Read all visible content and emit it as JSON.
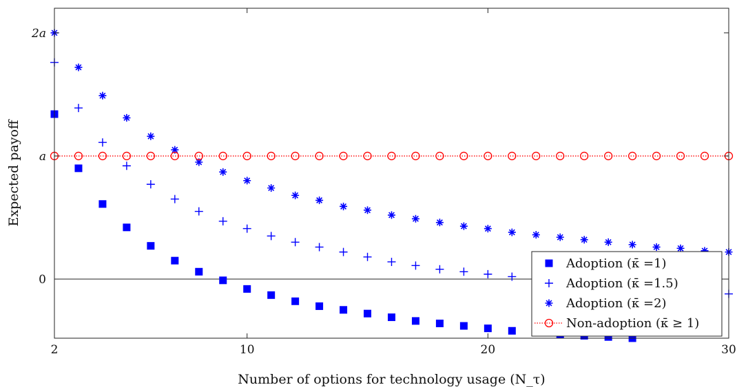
{
  "chart_data": {
    "type": "scatter",
    "xlabel": "Number of options for technology usage (N_τ)",
    "ylabel": "Expected payoff",
    "xlim": [
      2,
      30
    ],
    "ylim": [
      -0.48,
      2.2
    ],
    "x_ticks": [
      {
        "value": 2,
        "label": "2"
      },
      {
        "value": 10,
        "label": "10"
      },
      {
        "value": 20,
        "label": "20"
      },
      {
        "value": 30,
        "label": "30"
      }
    ],
    "y_ticks": [
      {
        "value": 0,
        "label": "0"
      },
      {
        "value": 1,
        "label": "a"
      },
      {
        "value": 2,
        "label": "2a"
      }
    ],
    "zero_line": 0,
    "grid": false,
    "legend_position": "bottom-right",
    "colors": {
      "adoption": "#0000ff",
      "non_adoption": "#ff0000"
    },
    "series": [
      {
        "name": "Adoption (κ̄ =1)",
        "marker": "square",
        "x": [
          2,
          3,
          4,
          5,
          6,
          7,
          8,
          9,
          10,
          11,
          12,
          13,
          14,
          15,
          16,
          17,
          18,
          19,
          20,
          21,
          22,
          23,
          24,
          25,
          26
        ],
        "y": [
          1.34,
          0.9,
          0.61,
          0.42,
          0.27,
          0.15,
          0.06,
          -0.01,
          -0.08,
          -0.13,
          -0.18,
          -0.22,
          -0.25,
          -0.28,
          -0.31,
          -0.34,
          -0.36,
          -0.38,
          -0.4,
          -0.42,
          -0.43,
          -0.45,
          -0.46,
          -0.47,
          -0.48
        ]
      },
      {
        "name": "Adoption (κ̄ =1.5)",
        "marker": "plus",
        "x": [
          2,
          3,
          4,
          5,
          6,
          7,
          8,
          9,
          10,
          11,
          12,
          13,
          14,
          15,
          16,
          17,
          18,
          19,
          20,
          21,
          22,
          23,
          24,
          25,
          26,
          27,
          28,
          29,
          30
        ],
        "y": [
          1.76,
          1.39,
          1.11,
          0.92,
          0.77,
          0.65,
          0.55,
          0.47,
          0.41,
          0.35,
          0.3,
          0.26,
          0.22,
          0.18,
          0.14,
          0.11,
          0.08,
          0.06,
          0.04,
          0.02,
          0.0,
          -0.02,
          -0.04,
          -0.06,
          -0.08,
          -0.09,
          -0.1,
          -0.11,
          -0.12
        ]
      },
      {
        "name": "Adoption (κ̄ =2)",
        "marker": "asterisk",
        "x": [
          2,
          3,
          4,
          5,
          6,
          7,
          8,
          9,
          10,
          11,
          12,
          13,
          14,
          15,
          16,
          17,
          18,
          19,
          20,
          21,
          22,
          23,
          24,
          25,
          26,
          27,
          28,
          29,
          30
        ],
        "y": [
          2.0,
          1.72,
          1.49,
          1.31,
          1.16,
          1.05,
          0.95,
          0.87,
          0.8,
          0.74,
          0.68,
          0.64,
          0.59,
          0.56,
          0.52,
          0.49,
          0.46,
          0.43,
          0.41,
          0.38,
          0.36,
          0.34,
          0.32,
          0.3,
          0.28,
          0.26,
          0.25,
          0.23,
          0.22
        ]
      },
      {
        "name": "Non-adoption (κ̄ ≥ 1)",
        "marker": "circle-dotted-line",
        "x": [
          2,
          3,
          4,
          5,
          6,
          7,
          8,
          9,
          10,
          11,
          12,
          13,
          14,
          15,
          16,
          17,
          18,
          19,
          20,
          21,
          22,
          23,
          24,
          25,
          26,
          27,
          28,
          29,
          30
        ],
        "y": [
          1,
          1,
          1,
          1,
          1,
          1,
          1,
          1,
          1,
          1,
          1,
          1,
          1,
          1,
          1,
          1,
          1,
          1,
          1,
          1,
          1,
          1,
          1,
          1,
          1,
          1,
          1,
          1,
          1
        ]
      }
    ]
  }
}
